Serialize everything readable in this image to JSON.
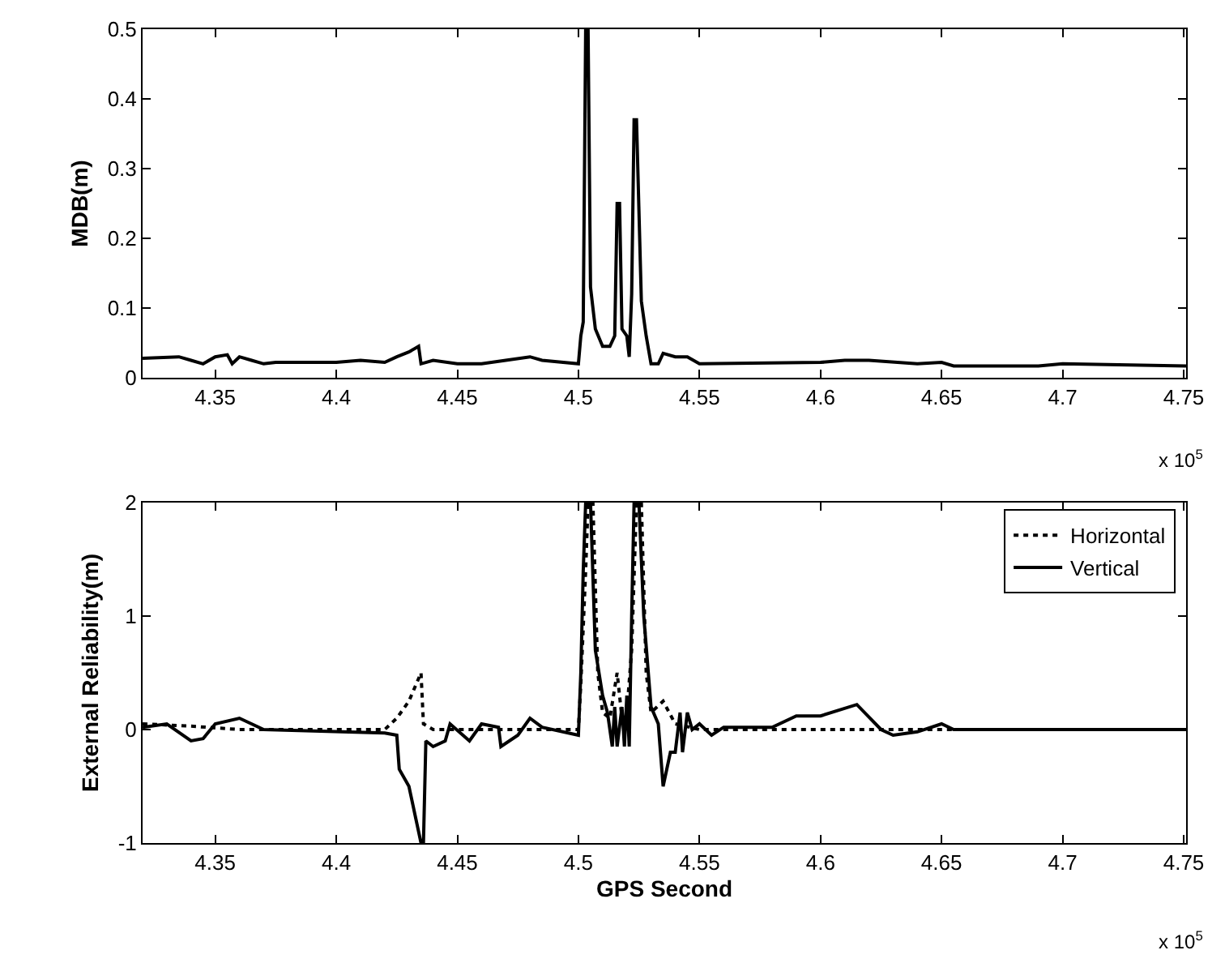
{
  "chart_data": [
    {
      "type": "line",
      "ylabel": "MDB(m)",
      "annotations": [
        "x 10$^{5}$"
      ],
      "xlim": [
        4.32,
        4.751
      ],
      "xticks": [
        4.35,
        4.4,
        4.45,
        4.5,
        4.55,
        4.6,
        4.65,
        4.7,
        4.75
      ],
      "ylim": [
        0,
        0.5
      ],
      "yticks": [
        0,
        0.1,
        0.2,
        0.3,
        0.4,
        0.5
      ],
      "grid": false,
      "legend": false,
      "series": [
        {
          "color": "#000000",
          "line_style": "solid",
          "x": [
            4.32,
            4.335,
            4.34,
            4.345,
            4.35,
            4.355,
            4.357,
            4.36,
            4.365,
            4.37,
            4.375,
            4.4,
            4.41,
            4.42,
            4.425,
            4.43,
            4.434,
            4.435,
            4.44,
            4.45,
            4.46,
            4.47,
            4.48,
            4.485,
            4.5,
            4.501,
            4.502,
            4.503,
            4.504,
            4.505,
            4.507,
            4.51,
            4.513,
            4.515,
            4.516,
            4.517,
            4.518,
            4.52,
            4.521,
            4.522,
            4.523,
            4.524,
            4.526,
            4.528,
            4.53,
            4.533,
            4.535,
            4.54,
            4.545,
            4.55,
            4.6,
            4.61,
            4.62,
            4.64,
            4.65,
            4.655,
            4.69,
            4.7,
            4.751
          ],
          "values": [
            0.028,
            0.03,
            0.025,
            0.02,
            0.03,
            0.033,
            0.02,
            0.03,
            0.025,
            0.02,
            0.022,
            0.022,
            0.025,
            0.022,
            0.03,
            0.037,
            0.045,
            0.02,
            0.025,
            0.02,
            0.02,
            0.025,
            0.03,
            0.025,
            0.02,
            0.06,
            0.08,
            0.5,
            0.5,
            0.13,
            0.07,
            0.045,
            0.045,
            0.06,
            0.25,
            0.25,
            0.07,
            0.06,
            0.03,
            0.12,
            0.37,
            0.37,
            0.11,
            0.06,
            0.02,
            0.02,
            0.035,
            0.03,
            0.03,
            0.02,
            0.022,
            0.025,
            0.025,
            0.02,
            0.022,
            0.017,
            0.017,
            0.02,
            0.017
          ]
        }
      ]
    },
    {
      "type": "line",
      "xlabel": "GPS Second",
      "ylabel": "External Reliability(m)",
      "annotations": [
        "x 10$^{5}$"
      ],
      "xlim": [
        4.32,
        4.751
      ],
      "xticks": [
        4.35,
        4.4,
        4.45,
        4.5,
        4.55,
        4.6,
        4.65,
        4.7,
        4.75
      ],
      "ylim": [
        -1,
        2
      ],
      "yticks": [
        -1,
        0,
        1,
        2
      ],
      "grid": false,
      "legend": "top right",
      "series": [
        {
          "name": "Horizontal",
          "color": "#000000",
          "line_style": "dotted",
          "x": [
            4.32,
            4.34,
            4.36,
            4.42,
            4.425,
            4.43,
            4.435,
            4.436,
            4.44,
            4.5,
            4.501,
            4.503,
            4.504,
            4.506,
            4.508,
            4.51,
            4.513,
            4.516,
            4.518,
            4.52,
            4.522,
            4.524,
            4.526,
            4.528,
            4.53,
            4.535,
            4.54,
            4.55,
            4.751
          ],
          "values": [
            0.05,
            0.03,
            0,
            0,
            0.1,
            0.25,
            0.5,
            0.05,
            0,
            0,
            0.4,
            1.4,
            2,
            2,
            0.5,
            0.15,
            0.1,
            0.5,
            0.1,
            0.15,
            0.7,
            2,
            2,
            0.5,
            0.15,
            0.25,
            0.05,
            0,
            0
          ]
        },
        {
          "name": "Vertical",
          "color": "#000000",
          "line_style": "solid",
          "x": [
            4.32,
            4.33,
            4.34,
            4.345,
            4.35,
            4.36,
            4.365,
            4.37,
            4.42,
            4.425,
            4.426,
            4.43,
            4.433,
            4.435,
            4.436,
            4.437,
            4.44,
            4.445,
            4.447,
            4.455,
            4.46,
            4.467,
            4.468,
            4.475,
            4.48,
            4.485,
            4.5,
            4.501,
            4.502,
            4.503,
            4.505,
            4.507,
            4.51,
            4.512,
            4.514,
            4.515,
            4.516,
            4.518,
            4.519,
            4.52,
            4.521,
            4.522,
            4.523,
            4.525,
            4.527,
            4.53,
            4.533,
            4.535,
            4.538,
            4.54,
            4.542,
            4.543,
            4.545,
            4.547,
            4.55,
            4.555,
            4.56,
            4.58,
            4.59,
            4.6,
            4.615,
            4.625,
            4.63,
            4.64,
            4.65,
            4.655,
            4.751
          ],
          "values": [
            0.02,
            0.05,
            -0.1,
            -0.08,
            0.05,
            0.1,
            0.05,
            0,
            -0.03,
            -0.05,
            -0.35,
            -0.5,
            -0.8,
            -1,
            -1,
            -0.1,
            -0.15,
            -0.1,
            0.05,
            -0.1,
            0.05,
            0.02,
            -0.15,
            -0.05,
            0.1,
            0.02,
            -0.05,
            0.5,
            1.4,
            2,
            2,
            0.7,
            0.3,
            0.15,
            -0.15,
            0.2,
            -0.15,
            0.2,
            -0.15,
            0.3,
            -0.15,
            1,
            2,
            2,
            1,
            0.2,
            0.05,
            -0.5,
            -0.2,
            -0.2,
            0.15,
            -0.2,
            0.15,
            0,
            0.05,
            -0.05,
            0.02,
            0.02,
            0.12,
            0.12,
            0.22,
            0,
            -0.05,
            -0.02,
            0.05,
            0,
            0
          ]
        }
      ]
    }
  ]
}
